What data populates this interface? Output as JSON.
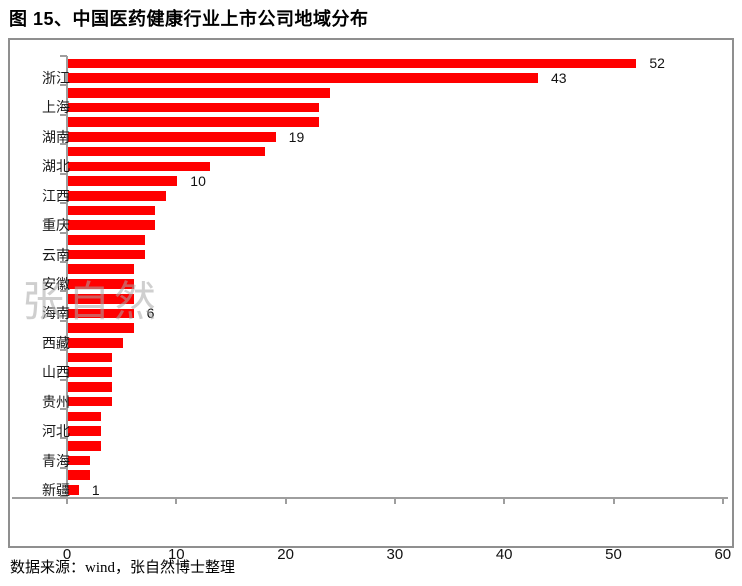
{
  "page": {
    "title": "图 15、中国医药健康行业上市公司地域分布",
    "source_note": "数据来源：wind，张自然博士整理",
    "watermark": "张自然"
  },
  "chart_data": {
    "type": "bar",
    "orientation": "horizontal",
    "title": "图 15、中国医药健康行业上市公司地域分布",
    "bar_color": "#ff0000",
    "axis_color": "#9e9e9e",
    "xlim": [
      0,
      60
    ],
    "xticks": [
      "0",
      "10",
      "20",
      "30",
      "40",
      "50",
      "60"
    ],
    "axis_label_interval": 2,
    "visible_axis_labels": [
      "浙江",
      "上海",
      "湖南",
      "湖北",
      "江西",
      "重庆",
      "云南",
      "安徽",
      "海南",
      "西藏",
      "山西",
      "贵州",
      "河北",
      "青海",
      "新疆"
    ],
    "bars": [
      {
        "label": "",
        "value": 52,
        "data_label": "52"
      },
      {
        "label": "浙江",
        "value": 43,
        "data_label": "43"
      },
      {
        "label": "",
        "value": 24,
        "data_label": ""
      },
      {
        "label": "上海",
        "value": 23,
        "data_label": ""
      },
      {
        "label": "",
        "value": 23,
        "data_label": ""
      },
      {
        "label": "湖南",
        "value": 19,
        "data_label": "19"
      },
      {
        "label": "",
        "value": 18,
        "data_label": ""
      },
      {
        "label": "湖北",
        "value": 13,
        "data_label": ""
      },
      {
        "label": "",
        "value": 10,
        "data_label": "10"
      },
      {
        "label": "江西",
        "value": 9,
        "data_label": ""
      },
      {
        "label": "",
        "value": 8,
        "data_label": ""
      },
      {
        "label": "重庆",
        "value": 8,
        "data_label": ""
      },
      {
        "label": "",
        "value": 7,
        "data_label": ""
      },
      {
        "label": "云南",
        "value": 7,
        "data_label": ""
      },
      {
        "label": "",
        "value": 6,
        "data_label": ""
      },
      {
        "label": "安徽",
        "value": 6,
        "data_label": ""
      },
      {
        "label": "",
        "value": 6,
        "data_label": ""
      },
      {
        "label": "海南",
        "value": 6,
        "data_label": "6"
      },
      {
        "label": "",
        "value": 6,
        "data_label": ""
      },
      {
        "label": "西藏",
        "value": 5,
        "data_label": ""
      },
      {
        "label": "",
        "value": 4,
        "data_label": ""
      },
      {
        "label": "山西",
        "value": 4,
        "data_label": ""
      },
      {
        "label": "",
        "value": 4,
        "data_label": ""
      },
      {
        "label": "贵州",
        "value": 4,
        "data_label": ""
      },
      {
        "label": "",
        "value": 3,
        "data_label": ""
      },
      {
        "label": "河北",
        "value": 3,
        "data_label": ""
      },
      {
        "label": "",
        "value": 3,
        "data_label": ""
      },
      {
        "label": "青海",
        "value": 2,
        "data_label": ""
      },
      {
        "label": "",
        "value": 2,
        "data_label": ""
      },
      {
        "label": "新疆",
        "value": 1,
        "data_label": "1"
      }
    ]
  }
}
